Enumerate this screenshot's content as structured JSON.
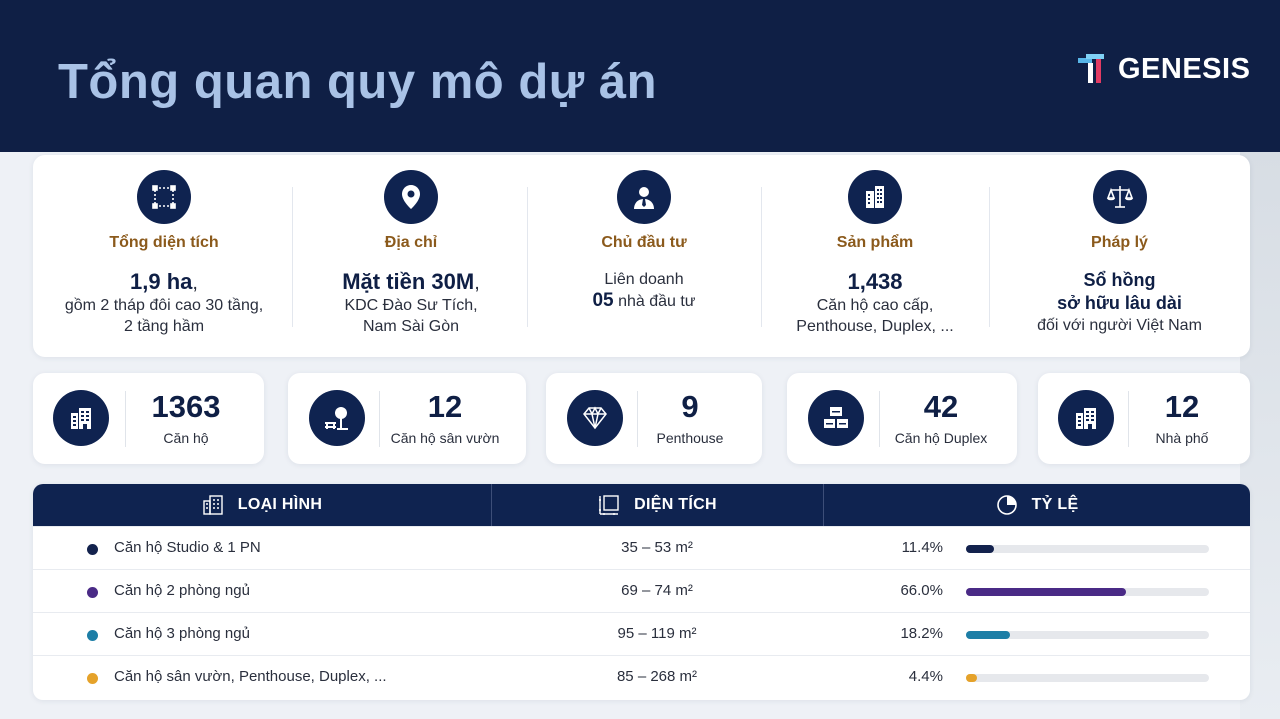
{
  "header": {
    "title": "Tổng quan quy mô dự án",
    "logo_text": "GENESIS"
  },
  "overview": [
    {
      "icon": "area-frame-icon",
      "label": "Tổng diện tích",
      "line1": "1,9 ha",
      "line1_suffix": ",",
      "line2": "gồm 2 tháp đôi cao 30 tầng,",
      "line3": "2 tầng hầm"
    },
    {
      "icon": "location-pin-icon",
      "label": "Địa chỉ",
      "line1": "Mặt tiền 30M",
      "line1_suffix": ",",
      "line2": "KDC Đào Sư Tích,",
      "line3": "Nam Sài Gòn"
    },
    {
      "icon": "investor-person-icon",
      "label": "Chủ đầu tư",
      "line1": "Liên doanh",
      "line2_num": "05",
      "line2": " nhà đầu tư"
    },
    {
      "icon": "building-icon",
      "label": "Sản phẩm",
      "line1": "1,438",
      "line2": "Căn hộ cao cấp,",
      "line3": "Penthouse, Duplex, ..."
    },
    {
      "icon": "scales-icon",
      "label": "Pháp lý",
      "line1": "Sổ hồng",
      "line2": "sở hữu lâu dài",
      "line3": "đối với người Việt Nam"
    }
  ],
  "stats": [
    {
      "icon": "apartment-building-icon",
      "value": "1363",
      "label": "Căn hộ"
    },
    {
      "icon": "garden-tree-icon",
      "value": "12",
      "label": "Căn hộ sân vườn"
    },
    {
      "icon": "diamond-icon",
      "value": "9",
      "label": "Penthouse"
    },
    {
      "icon": "duplex-stack-icon",
      "value": "42",
      "label": "Căn hộ Duplex"
    },
    {
      "icon": "townhouse-icon",
      "value": "12",
      "label": "Nhà phố"
    }
  ],
  "table": {
    "headers": {
      "type": "LOẠI HÌNH",
      "area": "DIỆN TÍCH",
      "ratio": "TỶ LỆ"
    },
    "rows": [
      {
        "type": "Căn hộ Studio & 1 PN",
        "area": "35 – 53 m²",
        "pct": "11.4%",
        "value": 11.4,
        "color": "#13224d"
      },
      {
        "type": "Căn hộ 2 phòng ngủ",
        "area": "69 – 74 m²",
        "pct": "66.0%",
        "value": 66.0,
        "color": "#4a2a86"
      },
      {
        "type": "Căn hộ 3 phòng ngủ",
        "area": "95 – 119 m²",
        "pct": "18.2%",
        "value": 18.2,
        "color": "#1d7ea6"
      },
      {
        "type": "Căn hộ sân vườn, Penthouse, Duplex, ...",
        "area": "85 – 268 m²",
        "pct": "4.4%",
        "value": 4.4,
        "color": "#e5a22a"
      }
    ]
  }
}
